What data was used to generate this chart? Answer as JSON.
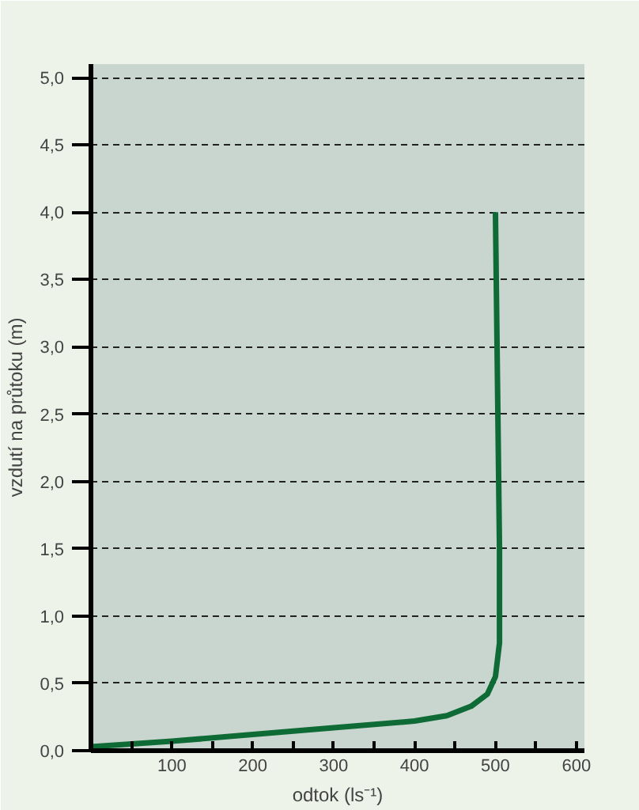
{
  "chart_data": {
    "type": "line",
    "xlabel": "odtok (ls⁻¹)",
    "ylabel": "vzdutí na průtoku (m)",
    "x": [
      0,
      100,
      200,
      300,
      400,
      440,
      470,
      490,
      500,
      505,
      505,
      502,
      500
    ],
    "series": [
      {
        "color": "#0e6b35",
        "values": [
          0.03,
          0.07,
          0.12,
          0.17,
          0.22,
          0.26,
          0.33,
          0.42,
          0.55,
          0.8,
          1.5,
          3.0,
          4.0
        ]
      }
    ],
    "xlim": [
      0,
      610
    ],
    "ylim": [
      0,
      5.1
    ],
    "xticks": [
      {
        "value": 50,
        "label": null
      },
      100,
      {
        "value": 150,
        "label": null
      },
      200,
      {
        "value": 250,
        "label": null
      },
      300,
      {
        "value": 350,
        "label": null
      },
      400,
      {
        "value": 450,
        "label": null
      },
      500,
      {
        "value": 550,
        "label": null
      },
      600
    ],
    "yticks": [
      {
        "value": 0,
        "label": "0,0"
      },
      {
        "value": 0.5,
        "label": "0,5"
      },
      {
        "value": 1,
        "label": "1,0"
      },
      {
        "value": 1.5,
        "label": "1,5"
      },
      {
        "value": 2,
        "label": "2,0"
      },
      {
        "value": 2.5,
        "label": "2,5"
      },
      {
        "value": 3,
        "label": "3,0"
      },
      {
        "value": 3.5,
        "label": "3,5"
      },
      {
        "value": 4,
        "label": "4,0"
      },
      {
        "value": 4.5,
        "label": "4,5"
      },
      {
        "value": 5,
        "label": "5,0"
      }
    ],
    "grid": "y",
    "line_style": "solid"
  }
}
